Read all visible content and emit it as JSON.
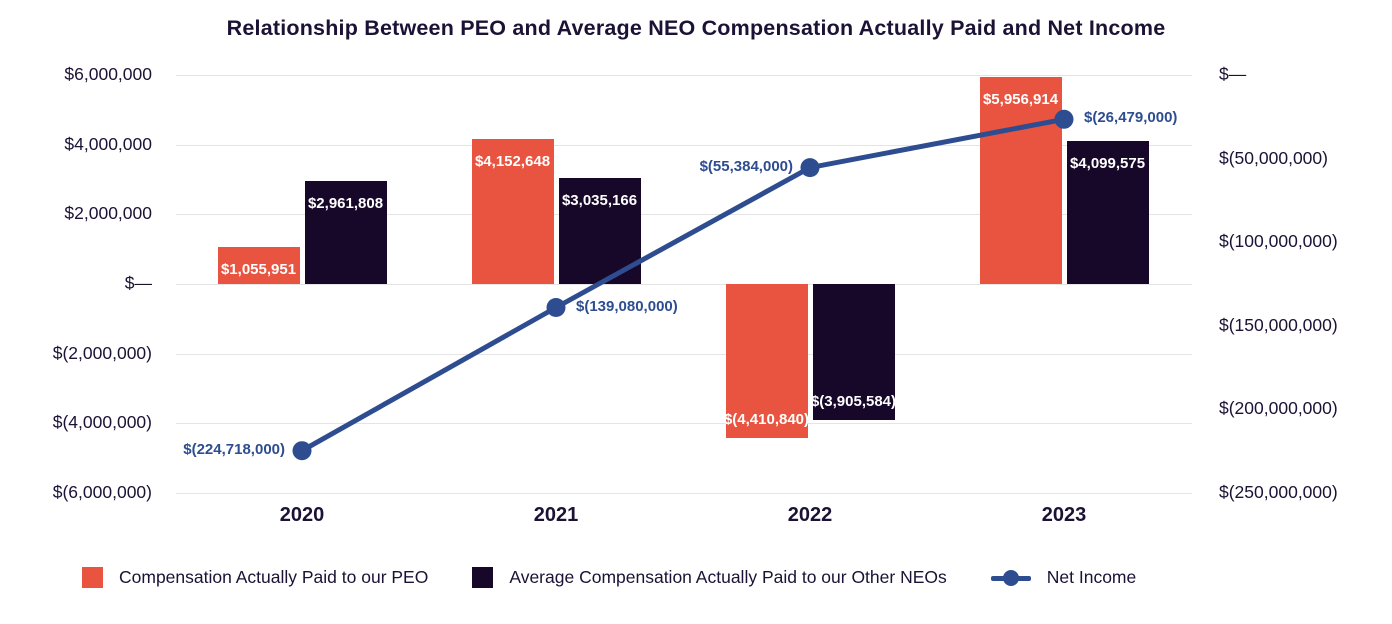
{
  "chart_data": {
    "type": "combo-bar-line",
    "title": "Relationship Between PEO and Average NEO Compensation Actually Paid and Net Income",
    "categories": [
      "2020",
      "2021",
      "2022",
      "2023"
    ],
    "series": [
      {
        "name": "Compensation Actually Paid to our PEO",
        "type": "bar",
        "axis": "left",
        "color": "#e85440",
        "values": [
          1055951,
          4152648,
          -4410840,
          5956914
        ],
        "labels": [
          "$1,055,951",
          "$4,152,648",
          "$(4,410,840)",
          "$5,956,914"
        ]
      },
      {
        "name": "Average Compensation Actually Paid to our Other NEOs",
        "type": "bar",
        "axis": "left",
        "color": "#170829",
        "values": [
          2961808,
          3035166,
          -3905584,
          4099575
        ],
        "labels": [
          "$2,961,808",
          "$3,035,166",
          "$(3,905,584)",
          "$4,099,575"
        ]
      },
      {
        "name": "Net Income",
        "type": "line",
        "axis": "right",
        "color": "#2e4d91",
        "values": [
          -224718000,
          -139080000,
          -55384000,
          -26479000
        ],
        "labels": [
          "$(224,718,000)",
          "$(139,080,000)",
          "$(55,384,000)",
          "$(26,479,000)"
        ],
        "label_sides": [
          "left",
          "right",
          "left",
          "right"
        ]
      }
    ],
    "left_axis": {
      "range": [
        -6000000,
        6000000
      ],
      "tick_values": [
        6000000,
        4000000,
        2000000,
        0,
        -2000000,
        -4000000,
        -6000000
      ],
      "tick_labels": [
        "$6,000,000",
        "$4,000,000",
        "$2,000,000",
        "$—",
        "$(2,000,000)",
        "$(4,000,000)",
        "$(6,000,000)"
      ]
    },
    "right_axis": {
      "range": [
        -250000000,
        0
      ],
      "tick_values": [
        0,
        -50000000,
        -100000000,
        -150000000,
        -200000000,
        -250000000
      ],
      "tick_labels": [
        "$—",
        "$(50,000,000)",
        "$(100,000,000)",
        "$(150,000,000)",
        "$(200,000,000)",
        "$(250,000,000)"
      ]
    },
    "grid": true,
    "legend_position": "bottom",
    "colors": {
      "title_text": "#1b1235",
      "axis_text": "#1b1235",
      "bar_label_text": "#ffffff",
      "gridline": "#e4e4e4"
    }
  }
}
